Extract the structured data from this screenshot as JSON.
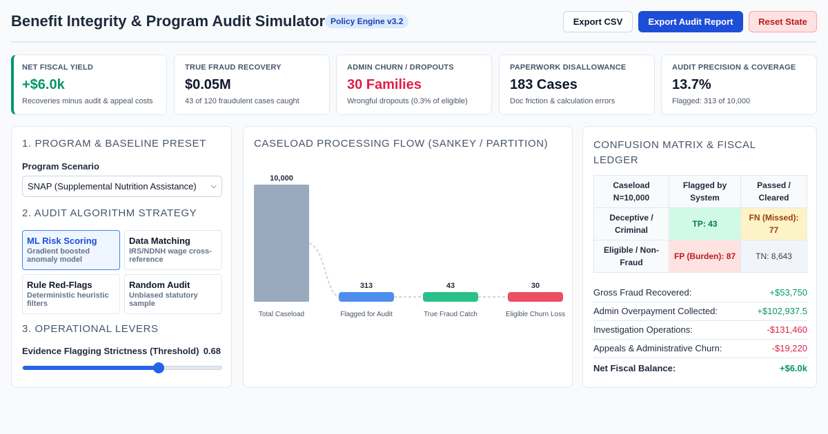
{
  "header": {
    "title": "Benefit Integrity & Program Audit Simulator",
    "badge": "Policy Engine v3.2",
    "buttons": {
      "export_csv": "Export CSV",
      "export_report": "Export Audit Report",
      "reset": "Reset State"
    }
  },
  "kpis": [
    {
      "label": "NET FISCAL YIELD",
      "value": "+$6.0k",
      "sub": "Recoveries minus audit & appeal costs",
      "tone": "green"
    },
    {
      "label": "TRUE FRAUD RECOVERY",
      "value": "$0.05M",
      "sub": "43 of 120 fraudulent cases caught",
      "tone": "dark"
    },
    {
      "label": "ADMIN CHURN / DROPOUTS",
      "value": "30 Families",
      "sub": "Wrongful dropouts (0.3% of eligible)",
      "tone": "red"
    },
    {
      "label": "PAPERWORK DISALLOWANCE",
      "value": "183 Cases",
      "sub": "Doc friction & calculation errors",
      "tone": "dark"
    },
    {
      "label": "AUDIT PRECISION & COVERAGE",
      "value": "13.7%",
      "sub": "Flagged: 313 of 10,000",
      "tone": "dark"
    }
  ],
  "left_panel": {
    "section1_title": "1. PROGRAM & BASELINE PRESET",
    "program_label": "Program Scenario",
    "program_value": "SNAP (Supplemental Nutrition Assistance)",
    "section2_title": "2. AUDIT ALGORITHM STRATEGY",
    "strategies": [
      {
        "name": "ML Risk Scoring",
        "desc": "Gradient boosted anomaly model",
        "active": true
      },
      {
        "name": "Data Matching",
        "desc": "IRS/NDNH wage cross-reference",
        "active": false
      },
      {
        "name": "Rule Red-Flags",
        "desc": "Deterministic heuristic filters",
        "active": false
      },
      {
        "name": "Random Audit",
        "desc": "Unbiased statutory sample",
        "active": false
      }
    ],
    "section3_title": "3. OPERATIONAL LEVERS",
    "slider_label": "Evidence Flagging Strictness (Threshold)",
    "slider_value_text": "0.68",
    "slider_value": 0.68
  },
  "flow_panel": {
    "title": "CASELOAD PROCESSING FLOW (SANKEY / PARTITION)",
    "chart_data": {
      "type": "bar",
      "categories": [
        "Total Caseload",
        "Flagged for Audit",
        "True Fraud Catch",
        "Eligible Churn Loss"
      ],
      "values": [
        10000,
        313,
        43,
        30
      ],
      "value_labels": [
        "10,000",
        "313",
        "43",
        "30"
      ],
      "colors": [
        "#9aa9bd",
        "#4f8def",
        "#2bbf8a",
        "#ee4d65"
      ]
    }
  },
  "right_panel": {
    "title": "CONFUSION MATRIX & FISCAL LEDGER",
    "matrix": {
      "corner": "Caseload N=10,000",
      "col_flagged": "Flagged by System",
      "col_passed": "Passed / Cleared",
      "row_deceptive": "Deceptive / Criminal",
      "row_eligible": "Eligible / Non-Fraud",
      "tp": "TP: 43",
      "fn": "FN (Missed): 77",
      "fp": "FP (Burden): 87",
      "tn": "TN: 8,643"
    },
    "ledger": [
      {
        "label": "Gross Fraud Recovered:",
        "value": "+$53,750",
        "tone": "green"
      },
      {
        "label": "Admin Overpayment Collected:",
        "value": "+$102,937.5",
        "tone": "green"
      },
      {
        "label": "Investigation Operations:",
        "value": "-$131,460",
        "tone": "red"
      },
      {
        "label": "Appeals & Administrative Churn:",
        "value": "-$19,220",
        "tone": "red"
      }
    ],
    "total_label": "Net Fiscal Balance:",
    "total_value": "+$6.0k"
  },
  "colors": {
    "accent": "#1d4ed8",
    "positive": "#059669",
    "negative": "#e11d48"
  }
}
